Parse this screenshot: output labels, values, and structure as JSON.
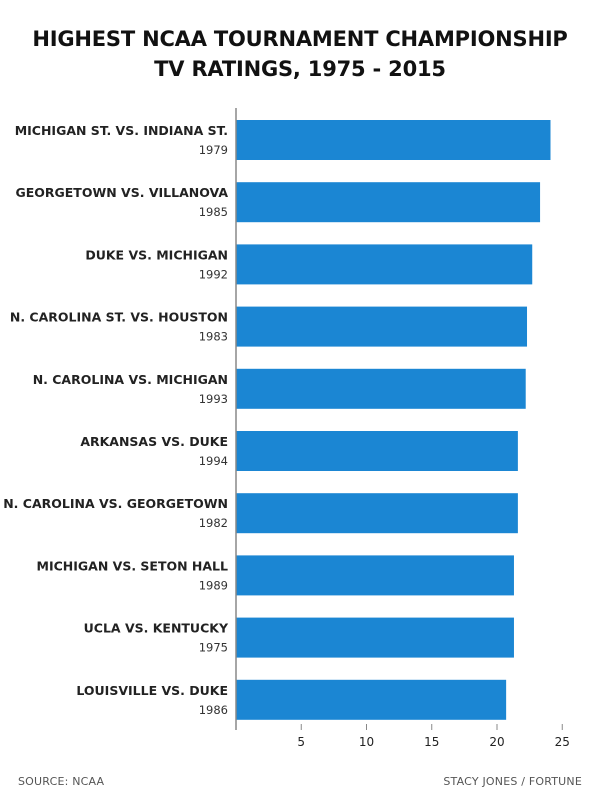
{
  "title_line1": "HIGHEST NCAA TOURNAMENT CHAMPIONSHIP",
  "title_line2": "TV RATINGS, 1975 - 2015",
  "source": "SOURCE: NCAA",
  "credit": "STACY JONES / FORTUNE",
  "colors": {
    "bar": "#1b86d3",
    "axis": "#888888",
    "text": "#222222"
  },
  "chart_data": {
    "type": "bar",
    "orientation": "horizontal",
    "title": "HIGHEST NCAA TOURNAMENT CHAMPIONSHIP TV RATINGS, 1975 - 2015",
    "categories": [
      {
        "matchup": "MICHIGAN ST. VS. INDIANA ST.",
        "year": "1979"
      },
      {
        "matchup": "GEORGETOWN VS. VILLANOVA",
        "year": "1985"
      },
      {
        "matchup": "DUKE VS. MICHIGAN",
        "year": "1992"
      },
      {
        "matchup": "N. CAROLINA ST. VS. HOUSTON",
        "year": "1983"
      },
      {
        "matchup": "N. CAROLINA VS. MICHIGAN",
        "year": "1993"
      },
      {
        "matchup": "ARKANSAS VS. DUKE",
        "year": "1994"
      },
      {
        "matchup": "N. CAROLINA VS. GEORGETOWN",
        "year": "1982"
      },
      {
        "matchup": "MICHIGAN VS. SETON HALL",
        "year": "1989"
      },
      {
        "matchup": "UCLA VS. KENTUCKY",
        "year": "1975"
      },
      {
        "matchup": "LOUISVILLE VS. DUKE",
        "year": "1986"
      }
    ],
    "values": [
      24.1,
      23.3,
      22.7,
      22.3,
      22.2,
      21.6,
      21.6,
      21.3,
      21.3,
      20.7
    ],
    "xticks": [
      5,
      10,
      15,
      20,
      25
    ],
    "xlim": [
      0,
      26
    ],
    "xlabel": "",
    "ylabel": "",
    "grid": false,
    "legend": "none"
  }
}
